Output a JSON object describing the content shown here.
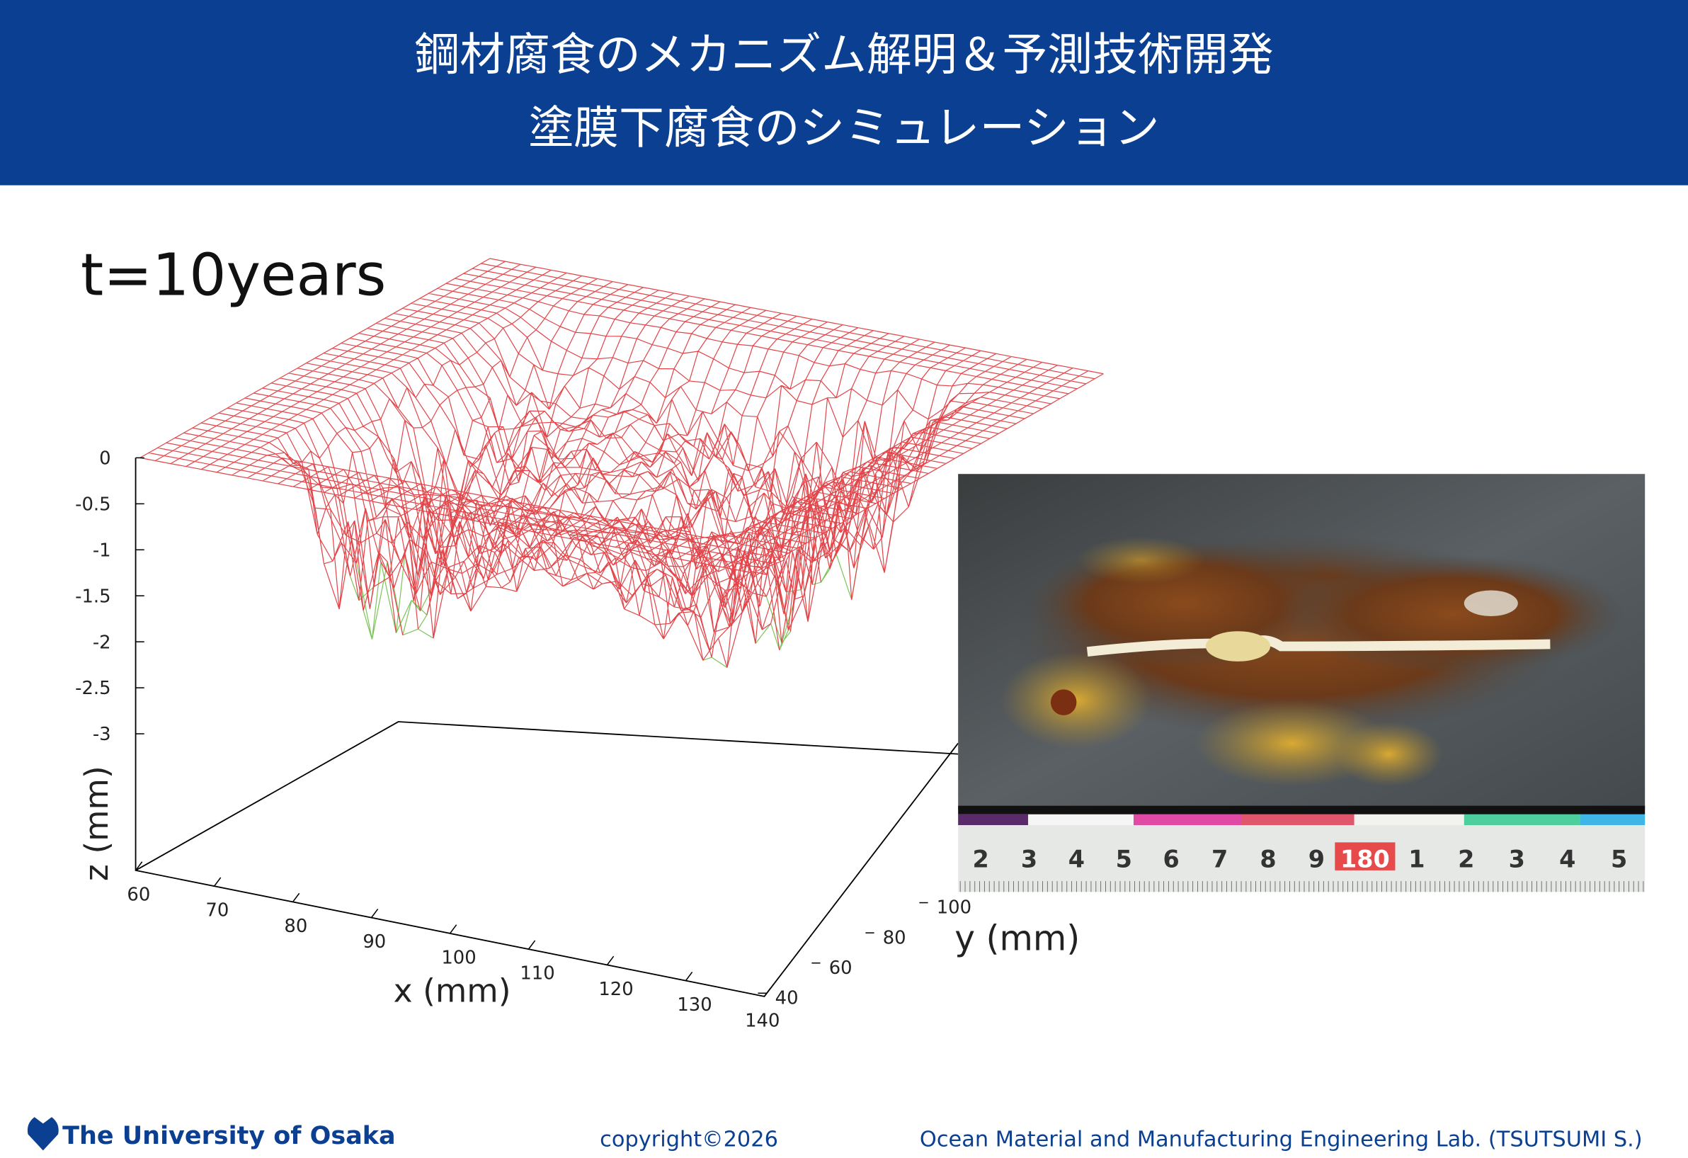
{
  "header": {
    "title_lines": [
      "鋼材腐食のメカニズム解明＆予測技術開発",
      "塗膜下腐食のシミュレーション"
    ]
  },
  "plot": {
    "label": "t=10years",
    "z_axis": {
      "label": "z (mm)",
      "ticks": [
        "0",
        "-0.5",
        "-1",
        "-1.5",
        "-2",
        "-2.5",
        "-3"
      ]
    },
    "x_axis": {
      "label": "x (mm)",
      "ticks": [
        "60",
        "70",
        "80",
        "90",
        "100",
        "110",
        "120",
        "130",
        "140"
      ]
    },
    "y_axis": {
      "label": "y (mm)",
      "ticks": [
        "40",
        "60",
        "80",
        "100"
      ]
    }
  },
  "photo": {
    "ruler_labels": [
      "2",
      "3",
      "4",
      "5",
      "6",
      "7",
      "8",
      "9",
      "180",
      "1",
      "2",
      "3",
      "4",
      "5"
    ]
  },
  "footer": {
    "university": "The University of Osaka",
    "copyright": "copyright©2026",
    "lab": "Ocean Material and Manufacturing Engineering Lab. (TSUTSUMI S.)"
  }
}
